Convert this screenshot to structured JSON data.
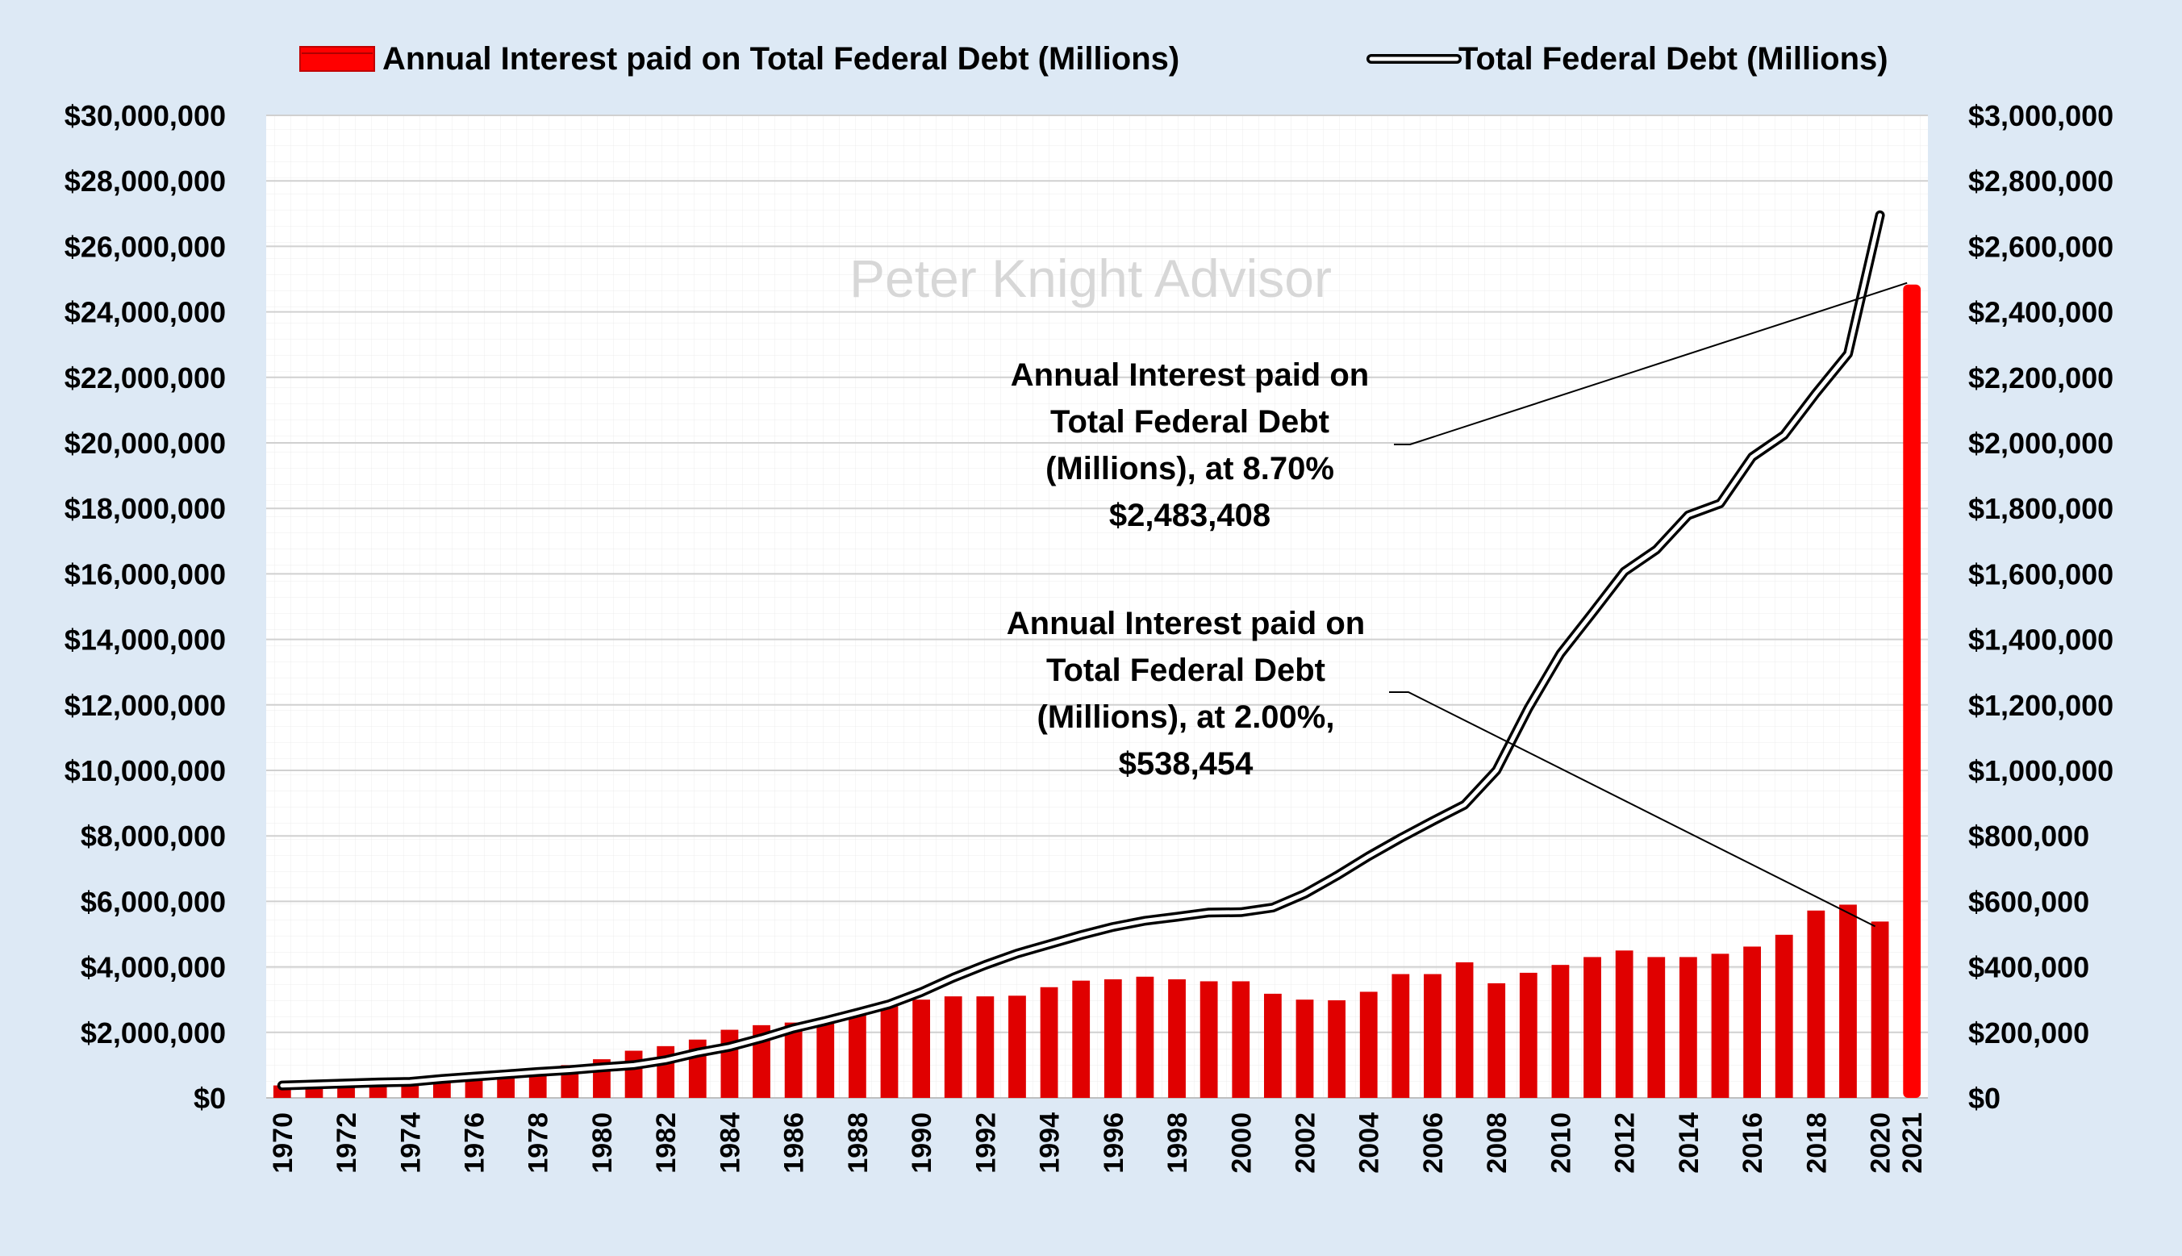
{
  "chart_data": {
    "type": "bar+line",
    "title": "",
    "watermark": "Peter Knight Advisor",
    "legend": [
      {
        "label": "Annual Interest paid on Total  Federal Debt (Millions)",
        "kind": "bar",
        "color": "#ff0000"
      },
      {
        "label": "Total Federal Debt (Millions)",
        "kind": "line",
        "color": "#000000"
      }
    ],
    "left_axis": {
      "min": 0,
      "max": 30000000,
      "step": 2000000,
      "ticks": [
        "$0",
        "$2,000,000",
        "$4,000,000",
        "$6,000,000",
        "$8,000,000",
        "$10,000,000",
        "$12,000,000",
        "$14,000,000",
        "$16,000,000",
        "$18,000,000",
        "$20,000,000",
        "$22,000,000",
        "$24,000,000",
        "$26,000,000",
        "$28,000,000",
        "$30,000,000"
      ]
    },
    "right_axis": {
      "min": 0,
      "max": 3000000,
      "step": 200000,
      "ticks": [
        "$0",
        "$200,000",
        "$400,000",
        "$600,000",
        "$800,000",
        "$1,000,000",
        "$1,200,000",
        "$1,400,000",
        "$1,600,000",
        "$1,800,000",
        "$2,000,000",
        "$2,200,000",
        "$2,400,000",
        "$2,600,000",
        "$2,800,000",
        "$3,000,000"
      ]
    },
    "years": [
      1970,
      1971,
      1972,
      1973,
      1974,
      1975,
      1976,
      1977,
      1978,
      1979,
      1980,
      1981,
      1982,
      1983,
      1984,
      1985,
      1986,
      1987,
      1988,
      1989,
      1990,
      1991,
      1992,
      1993,
      1994,
      1995,
      1996,
      1997,
      1998,
      1999,
      2000,
      2001,
      2002,
      2003,
      2004,
      2005,
      2006,
      2007,
      2008,
      2009,
      2010,
      2011,
      2012,
      2013,
      2014,
      2015,
      2016,
      2017,
      2018,
      2019,
      2020,
      2021
    ],
    "x_tick_labels": [
      "1970",
      "1972",
      "1974",
      "1976",
      "1978",
      "1980",
      "1982",
      "1984",
      "1986",
      "1988",
      "1990",
      "1992",
      "1994",
      "1996",
      "1998",
      "2000",
      "2002",
      "2004",
      "2006",
      "2008",
      "2010",
      "2012",
      "2014",
      "2016",
      "2018",
      "2020",
      "2021"
    ],
    "series": [
      {
        "name": "Annual Interest paid on Total  Federal Debt (Millions)",
        "type": "bar",
        "axis": "right",
        "color": "#e00000",
        "values": [
          38000,
          40000,
          42000,
          46000,
          50000,
          58000,
          64000,
          70000,
          86000,
          100000,
          118000,
          144000,
          158000,
          178000,
          208000,
          222000,
          230000,
          240000,
          260000,
          280000,
          300000,
          310000,
          310000,
          312000,
          338000,
          358000,
          362000,
          370000,
          362000,
          356000,
          356000,
          318000,
          300000,
          298000,
          324000,
          378000,
          378000,
          414000,
          350000,
          382000,
          406000,
          430000,
          450000,
          430000,
          430000,
          440000,
          462000,
          498000,
          572000,
          590000,
          538454,
          2483408
        ]
      },
      {
        "name": "Total Federal Debt (Millions)",
        "type": "line",
        "axis": "left",
        "color": "#000000",
        "values": [
          380000,
          410000,
          440000,
          470000,
          490000,
          580000,
          650000,
          720000,
          790000,
          850000,
          930000,
          1000000,
          1150000,
          1380000,
          1560000,
          1820000,
          2120000,
          2350000,
          2600000,
          2860000,
          3230000,
          3670000,
          4060000,
          4410000,
          4690000,
          4970000,
          5220000,
          5410000,
          5530000,
          5660000,
          5670000,
          5810000,
          6230000,
          6780000,
          7380000,
          7930000,
          8450000,
          8950000,
          10000000,
          11900000,
          13560000,
          14800000,
          16070000,
          16740000,
          17790000,
          18150000,
          19570000,
          20240000,
          21520000,
          22720000,
          26950000
        ]
      }
    ],
    "annotations": [
      {
        "lines": [
          "Annual Interest paid on",
          "Total  Federal Debt",
          "(Millions), at 8.70%",
          "$2,483,408"
        ],
        "points_to_year": 2021,
        "points_to_value": 2483408
      },
      {
        "lines": [
          "Annual Interest paid on",
          "Total  Federal Debt",
          "(Millions), at 2.00%,",
          "$538,454"
        ],
        "points_to_year": 2020,
        "points_to_value": 538454
      }
    ]
  }
}
